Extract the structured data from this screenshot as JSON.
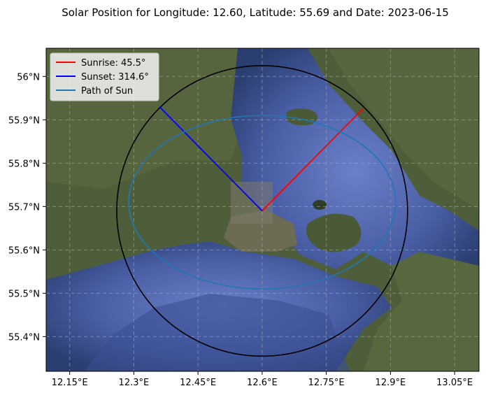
{
  "chart_data": {
    "type": "line",
    "title": "Solar Position for Longitude: 12.60, Latitude: 55.69 and Date: 2023-06-15",
    "xlim": [
      12.095,
      13.107
    ],
    "ylim": [
      55.32,
      56.065
    ],
    "x_ticks": [
      {
        "value": 12.15,
        "label": "12.15°E"
      },
      {
        "value": 12.3,
        "label": "12.3°E"
      },
      {
        "value": 12.45,
        "label": "12.45°E"
      },
      {
        "value": 12.6,
        "label": "12.6°E"
      },
      {
        "value": 12.75,
        "label": "12.75°E"
      },
      {
        "value": 12.9,
        "label": "12.9°E"
      },
      {
        "value": 13.05,
        "label": "13.05°E"
      }
    ],
    "y_ticks": [
      {
        "value": 55.4,
        "label": "55.4°N"
      },
      {
        "value": 55.5,
        "label": "55.5°N"
      },
      {
        "value": 55.6,
        "label": "55.6°N"
      },
      {
        "value": 55.7,
        "label": "55.7°N"
      },
      {
        "value": 55.8,
        "label": "55.8°N"
      },
      {
        "value": 55.9,
        "label": "55.9°N"
      },
      {
        "value": 56.0,
        "label": "56°N"
      }
    ],
    "grid": true,
    "center": {
      "lon": 12.6,
      "lat": 55.69
    },
    "series": [
      {
        "name": "Sunrise: 45.5°",
        "color": "#ff0000",
        "x": [
          12.6,
          12.835
        ],
        "y": [
          55.69,
          55.925
        ]
      },
      {
        "name": "Sunset: 314.6°",
        "color": "#0000ff",
        "x": [
          12.6,
          12.36
        ],
        "y": [
          55.69,
          55.93
        ]
      },
      {
        "name": "Path of Sun",
        "color": "#1f77b4",
        "center": [
          12.6,
          55.71
        ],
        "radius_x": 0.312,
        "radius_y": 0.2
      }
    ],
    "horizon_circle": {
      "color": "#000000",
      "center": [
        12.6,
        55.69
      ],
      "radius_x": 0.34,
      "radius_y": 0.335
    },
    "legend": {
      "placement": "top-left"
    },
    "background": "satellite-map"
  }
}
